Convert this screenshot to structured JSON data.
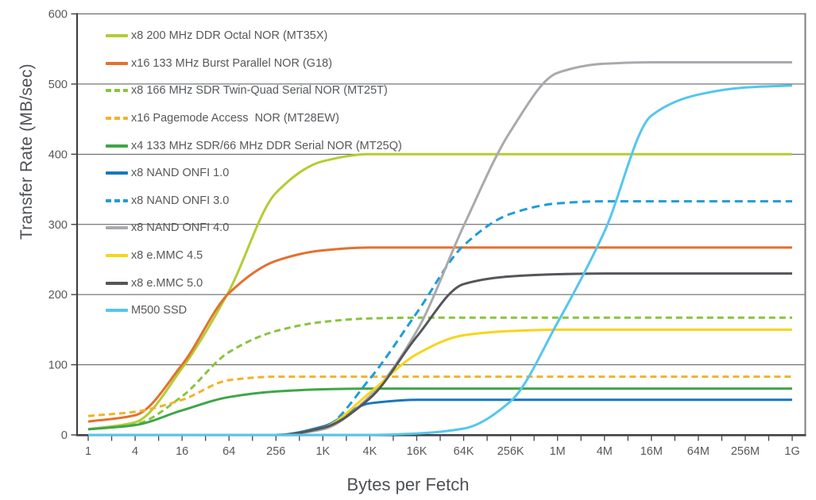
{
  "chart_data": {
    "type": "line",
    "title": "",
    "xlabel": "Bytes per Fetch",
    "ylabel": "Transfer Rate (MB/sec)",
    "x_scale": "log",
    "ylim": [
      0,
      600
    ],
    "y_ticks": [
      0,
      100,
      200,
      300,
      400,
      500,
      600
    ],
    "grid": "horizontal",
    "legend_position": "inside-top-left",
    "categories": [
      "1",
      "4",
      "16",
      "64",
      "256",
      "1K",
      "4K",
      "16K",
      "64K",
      "256K",
      "1M",
      "4M",
      "16M",
      "64M",
      "256M",
      "1G"
    ],
    "series": [
      {
        "name": "x8 200 MHz DDR Octal NOR (MT35X)",
        "color": "#b3cd34",
        "dash": null,
        "values": [
          8,
          18,
          95,
          205,
          345,
          390,
          400,
          400,
          400,
          400,
          400,
          400,
          400,
          400,
          400,
          400
        ]
      },
      {
        "name": "x16 133 MHz Burst Parallel NOR (G18)",
        "color": "#e4702e",
        "dash": null,
        "values": [
          19,
          28,
          100,
          202,
          248,
          263,
          267,
          267,
          267,
          267,
          267,
          267,
          267,
          267,
          267,
          267
        ]
      },
      {
        "name": "x8 166 MHz SDR Twin-Quad Serial NOR (MT25T)",
        "color": "#89c43f",
        "dash": "8 5",
        "values": [
          8,
          15,
          55,
          118,
          148,
          161,
          166,
          167,
          167,
          167,
          167,
          167,
          167,
          167,
          167,
          167
        ]
      },
      {
        "name": "x16 Pagemode Access  NOR (MT28EW)",
        "color": "#f3b229",
        "dash": "8 5",
        "values": [
          27,
          33,
          50,
          78,
          83,
          83,
          83,
          83,
          83,
          83,
          83,
          83,
          83,
          83,
          83,
          83
        ]
      },
      {
        "name": "x4 133 MHz SDR/66 MHz DDR Serial NOR (MT25Q)",
        "color": "#3fa648",
        "dash": null,
        "values": [
          8,
          14,
          35,
          54,
          62,
          65,
          66,
          66,
          66,
          66,
          66,
          66,
          66,
          66,
          66,
          66
        ]
      },
      {
        "name": "x8 NAND ONFI 1.0",
        "color": "#1777bc",
        "dash": null,
        "values": [
          0,
          0,
          0,
          0,
          0,
          12,
          45,
          50,
          50,
          50,
          50,
          50,
          50,
          50,
          50,
          50
        ]
      },
      {
        "name": "x8 NAND ONFI 3.0",
        "color": "#1e9cd8",
        "dash": "10 6",
        "values": [
          0,
          0,
          0,
          0,
          0,
          10,
          80,
          174,
          270,
          315,
          330,
          333,
          333,
          333,
          333,
          333
        ]
      },
      {
        "name": "x8 NAND ONFI 4.0",
        "color": "#a8aaad",
        "dash": null,
        "values": [
          0,
          0,
          0,
          0,
          0,
          8,
          55,
          148,
          298,
          433,
          516,
          529,
          531,
          531,
          531,
          531
        ]
      },
      {
        "name": "x8 e.MMC 4.5",
        "color": "#f7d51a",
        "dash": null,
        "values": [
          0,
          0,
          0,
          0,
          0,
          10,
          60,
          115,
          142,
          148,
          150,
          150,
          150,
          150,
          150,
          150
        ]
      },
      {
        "name": "x8 e.MMC 5.0",
        "color": "#54565a",
        "dash": null,
        "values": [
          0,
          0,
          0,
          0,
          0,
          10,
          52,
          140,
          215,
          226,
          229,
          230,
          230,
          230,
          230,
          230
        ]
      },
      {
        "name": "M500 SSD",
        "color": "#54c6ee",
        "dash": null,
        "values": [
          0,
          0,
          0,
          0,
          0,
          0,
          0,
          2,
          9,
          48,
          160,
          290,
          455,
          485,
          495,
          498
        ]
      }
    ]
  },
  "palette": {
    "background": "#ffffff",
    "grid_line": "#55575a",
    "axis_line": "#404245",
    "plot_border_right": "#7c7e81",
    "tick_text": "#56585b",
    "axis_title_text": "#4e5054"
  }
}
